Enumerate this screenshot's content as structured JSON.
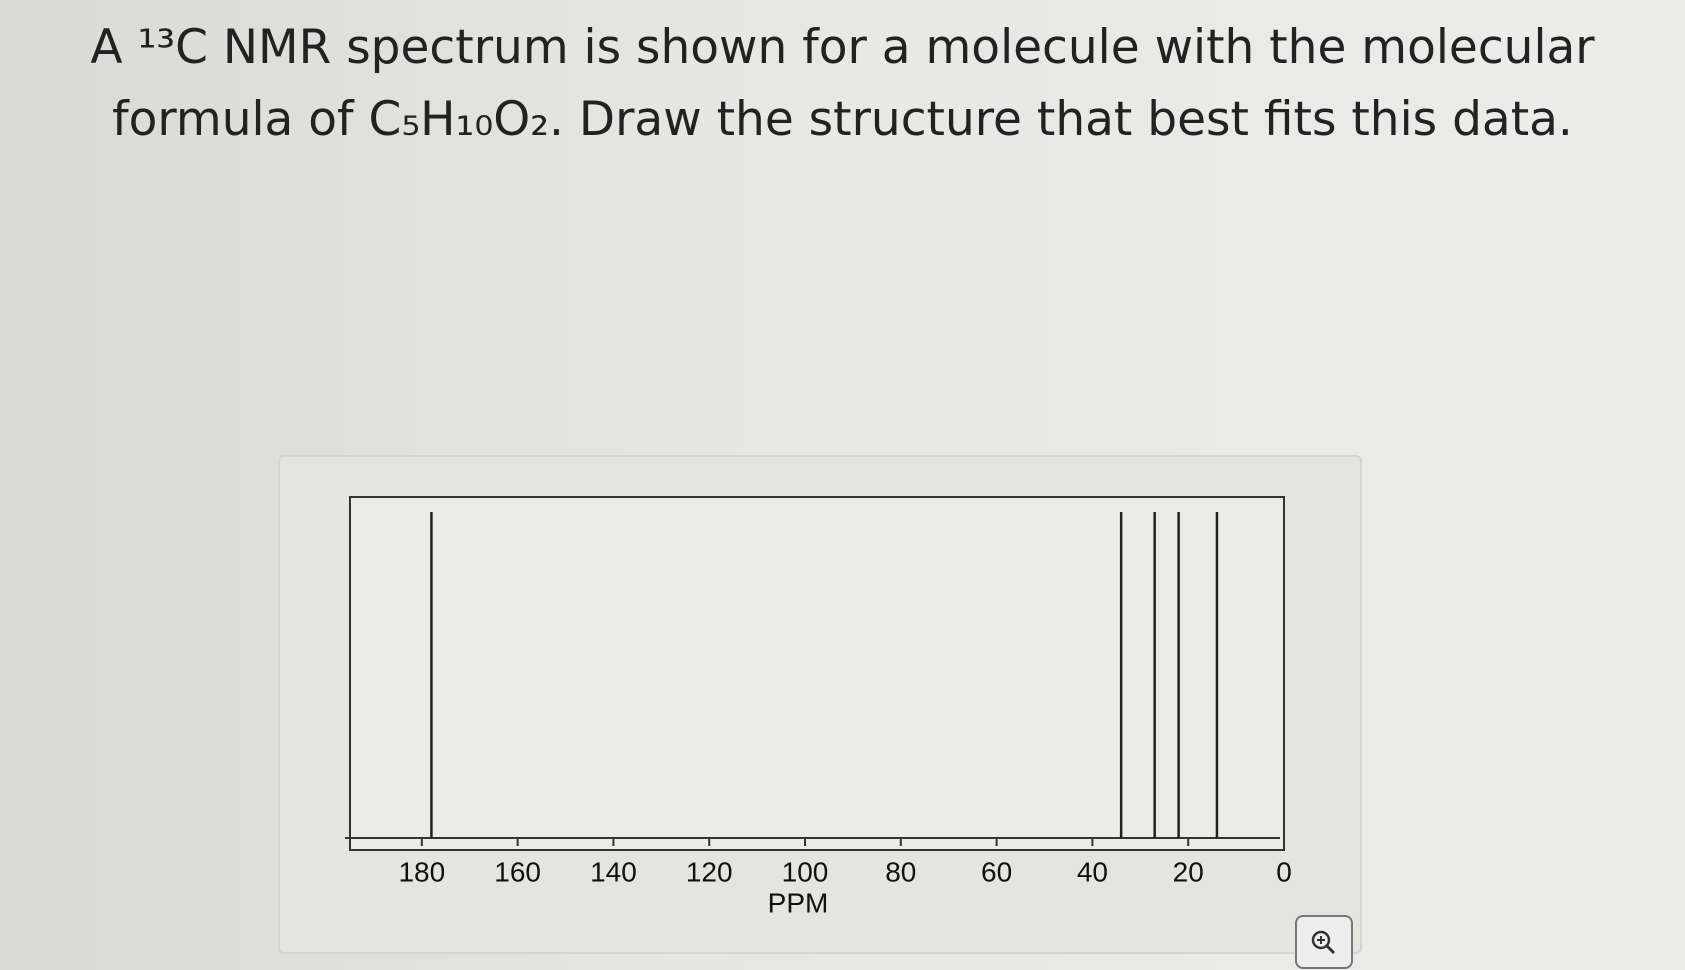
{
  "question": "A ¹³C NMR spectrum is shown for a molecule with the molecular formula of C₅H₁₀O₂. Draw the structure that best fits this data.",
  "chart_data": {
    "type": "stick",
    "x": [
      178,
      34,
      27,
      22,
      14
    ],
    "xlim": [
      195,
      0
    ],
    "xticks": [
      180,
      160,
      140,
      120,
      100,
      80,
      60,
      40,
      20,
      0
    ],
    "xlabel": "PPM",
    "color": "#222222"
  }
}
